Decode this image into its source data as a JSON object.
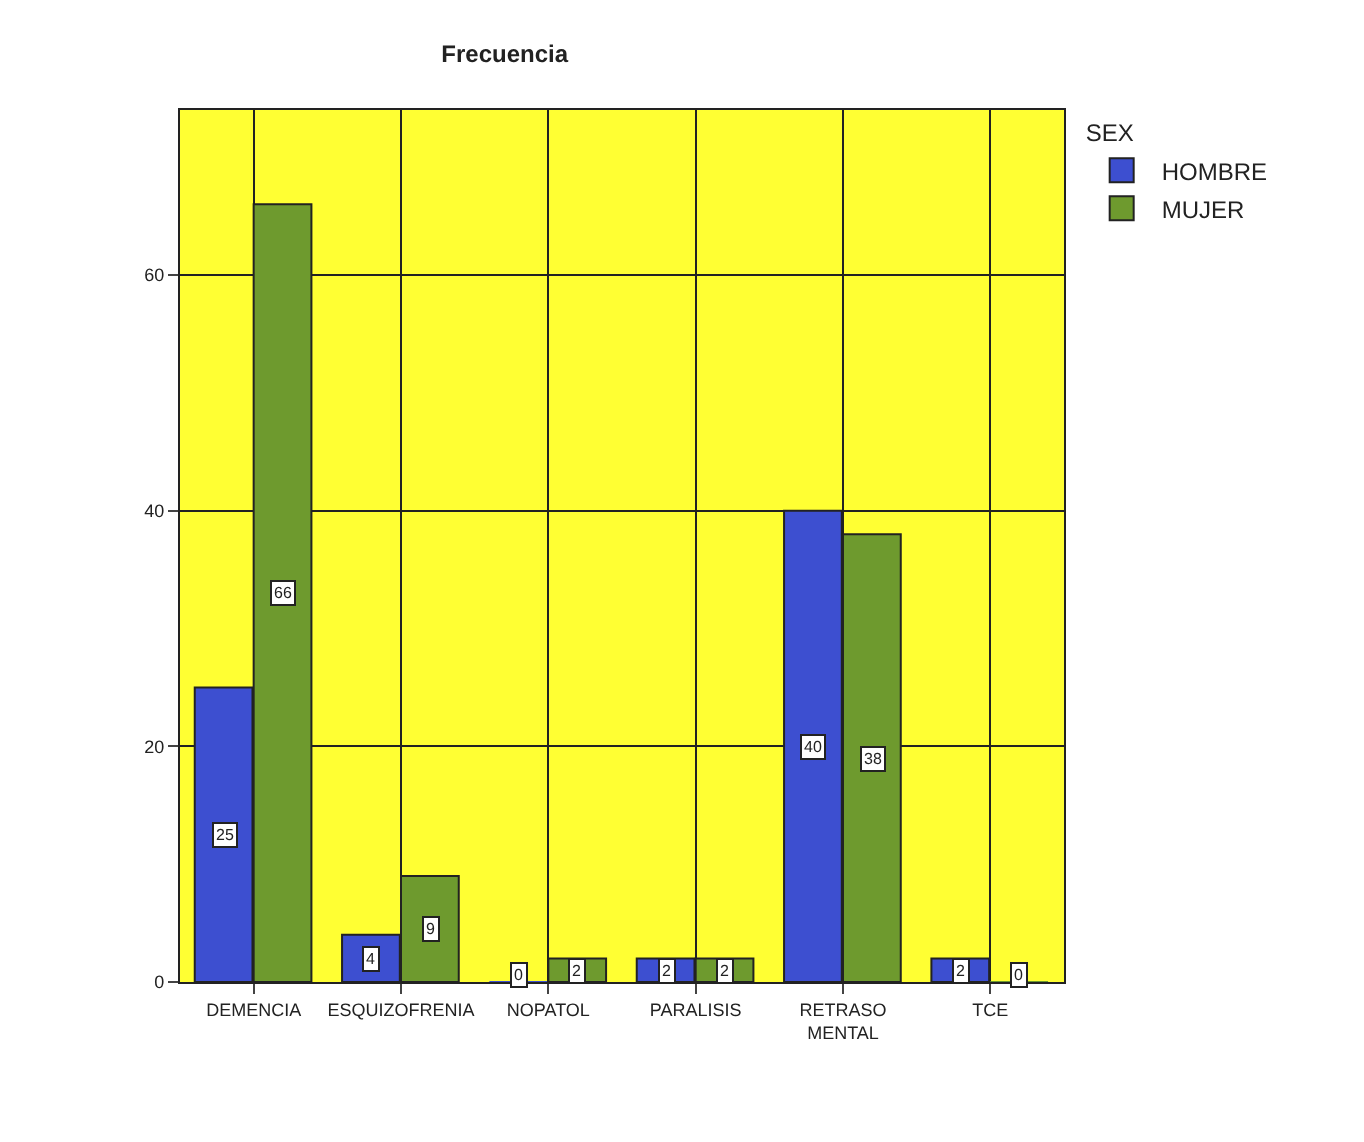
{
  "chart_data": {
    "type": "bar",
    "title": "Frecuencia",
    "legend_title": "SEX",
    "categories": [
      "DEMENCIA",
      "ESQUIZOFRENIA",
      "NOPATOL",
      "PARALISIS",
      "RETRASO MENTAL",
      "TCE"
    ],
    "series": [
      {
        "name": "HOMBRE",
        "color": "#3d4fd0",
        "values": [
          25,
          4,
          0,
          2,
          40,
          2
        ]
      },
      {
        "name": "MUJER",
        "color": "#6e9a2e",
        "values": [
          66,
          9,
          2,
          2,
          38,
          0
        ]
      }
    ],
    "ylim": [
      0,
      74
    ],
    "yticks": [
      0,
      20,
      40,
      60
    ],
    "grid": true,
    "legend": "top right",
    "data_labels": true
  }
}
